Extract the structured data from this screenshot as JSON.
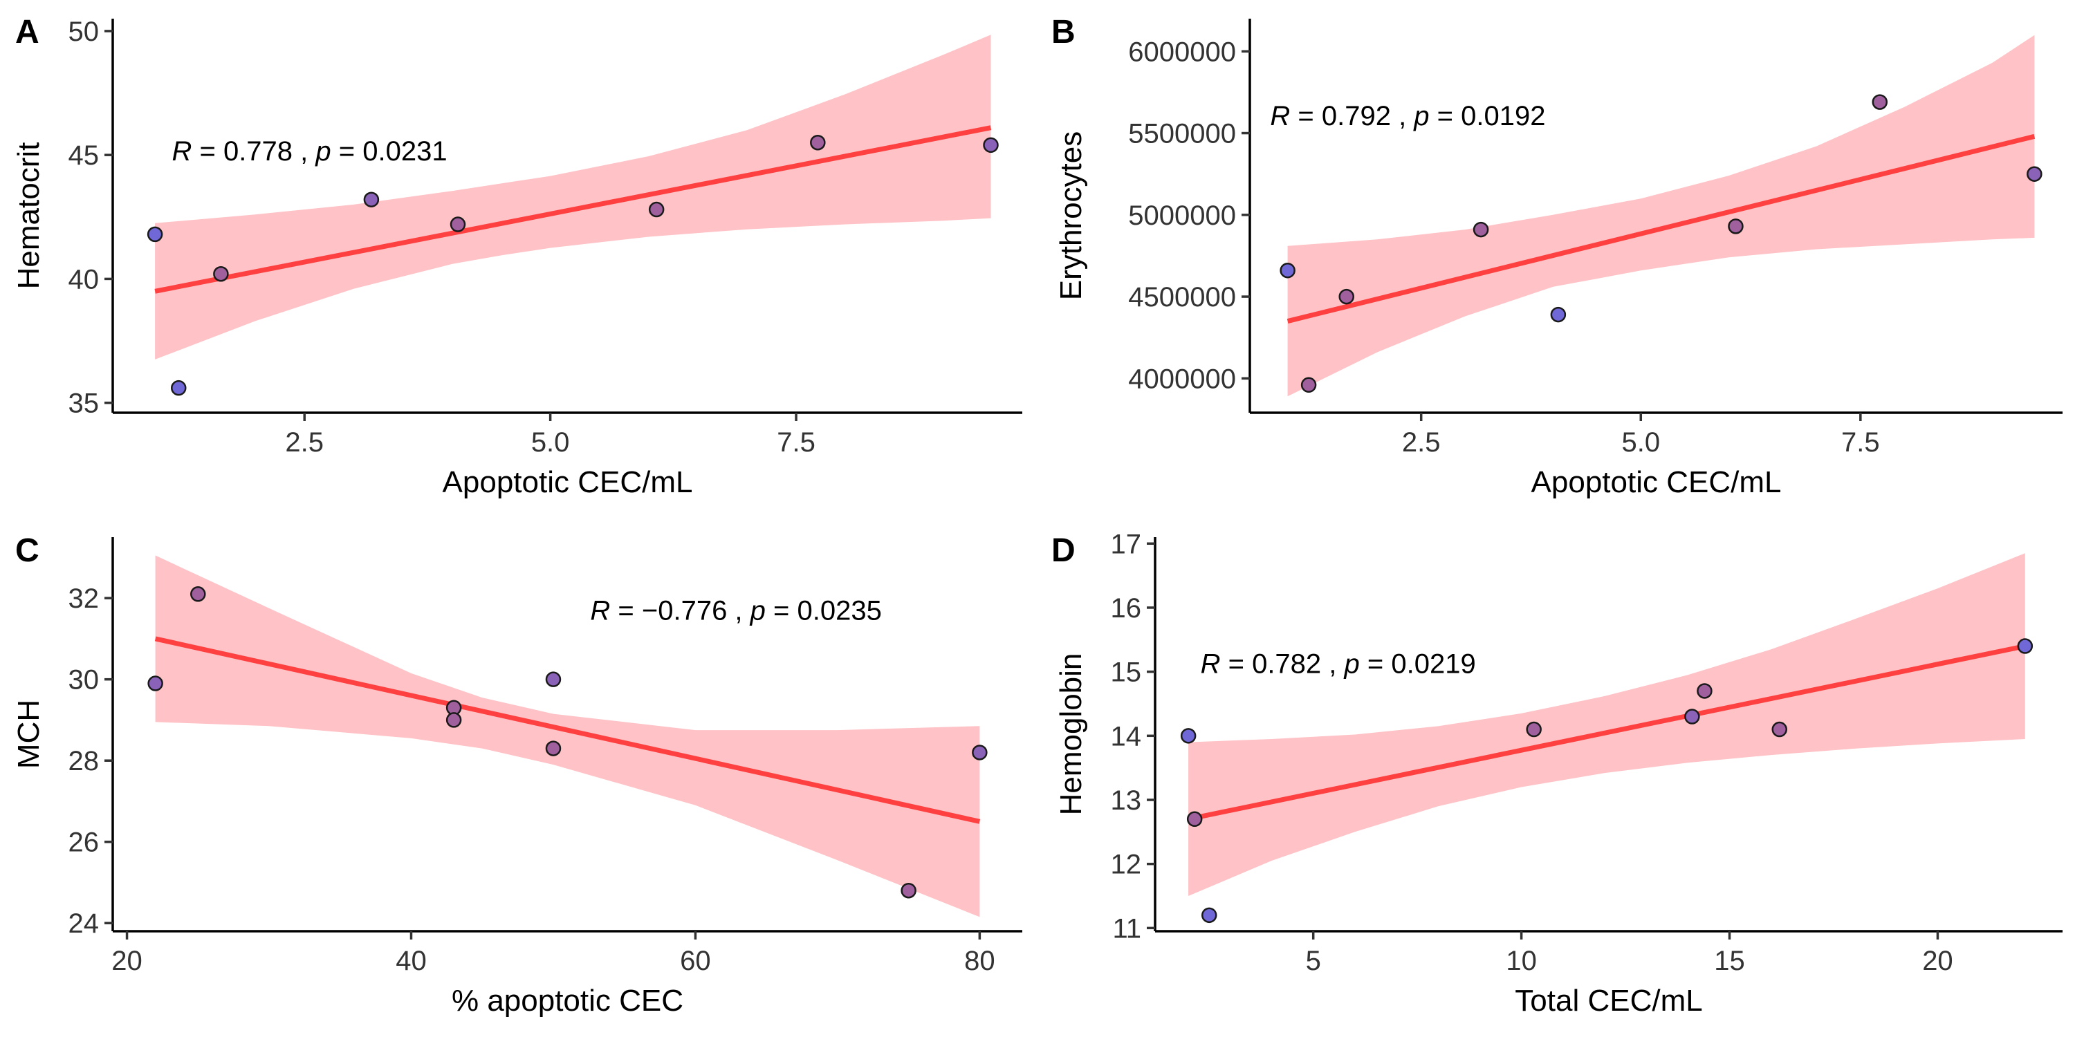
{
  "colors": {
    "fit_line": "#ff4040",
    "ci_band": "#ffc2c6",
    "point_palette": [
      "#6f68d6",
      "#8a62b8",
      "#a0609e"
    ]
  },
  "chart_data": [
    {
      "panel": "A",
      "type": "scatter",
      "xlabel": "Apoptotic CEC/mL",
      "ylabel": "Hematocrit",
      "xlim": [
        0.55,
        9.8
      ],
      "ylim": [
        34.6,
        50.5
      ],
      "xticks": [
        2.5,
        5.0,
        7.5
      ],
      "xtick_labels": [
        "2.5",
        "5.0",
        "7.5"
      ],
      "yticks": [
        35,
        40,
        45,
        50
      ],
      "ytick_labels": [
        "35",
        "40",
        "45",
        "50"
      ],
      "annotation": {
        "r_label": "R = 0.778 ,",
        "p_label": "p = 0.0231"
      },
      "points": [
        {
          "x": 0.98,
          "y": 41.8,
          "c": 0
        },
        {
          "x": 1.22,
          "y": 35.6,
          "c": 0
        },
        {
          "x": 1.65,
          "y": 40.2,
          "c": 2
        },
        {
          "x": 3.18,
          "y": 43.2,
          "c": 1
        },
        {
          "x": 4.06,
          "y": 42.2,
          "c": 2
        },
        {
          "x": 6.08,
          "y": 42.8,
          "c": 2
        },
        {
          "x": 7.72,
          "y": 45.5,
          "c": 2
        },
        {
          "x": 9.48,
          "y": 45.4,
          "c": 1
        }
      ],
      "fit": {
        "x": [
          0.98,
          9.48
        ],
        "y": [
          39.5,
          46.1
        ]
      },
      "ci": {
        "x": [
          0.98,
          2.0,
          3.0,
          4.0,
          4.5,
          5.0,
          6.0,
          7.0,
          8.0,
          9.0,
          9.48
        ],
        "lower": [
          36.75,
          38.3,
          39.6,
          40.6,
          40.95,
          41.25,
          41.7,
          42.0,
          42.2,
          42.35,
          42.45
        ],
        "upper": [
          42.25,
          42.6,
          43.0,
          43.55,
          43.85,
          44.15,
          44.95,
          46.0,
          47.45,
          49.05,
          49.85
        ]
      }
    },
    {
      "panel": "B",
      "type": "scatter",
      "xlabel": "Apoptotic CEC/mL",
      "ylabel": "Erythrocytes",
      "xlim": [
        0.55,
        9.8
      ],
      "ylim": [
        3790000,
        6200000
      ],
      "xticks": [
        2.5,
        5.0,
        7.5
      ],
      "xtick_labels": [
        "2.5",
        "5.0",
        "7.5"
      ],
      "yticks": [
        4000000,
        4500000,
        5000000,
        5500000,
        6000000
      ],
      "ytick_labels": [
        "4000000",
        "4500000",
        "5000000",
        "5500000",
        "6000000"
      ],
      "annotation": {
        "r_label": "R = 0.792 ,",
        "p_label": "p = 0.0192"
      },
      "points": [
        {
          "x": 0.98,
          "y": 4660000,
          "c": 0
        },
        {
          "x": 1.22,
          "y": 3960000,
          "c": 2
        },
        {
          "x": 1.65,
          "y": 4500000,
          "c": 2
        },
        {
          "x": 3.18,
          "y": 4910000,
          "c": 2
        },
        {
          "x": 4.06,
          "y": 4390000,
          "c": 0
        },
        {
          "x": 6.08,
          "y": 4930000,
          "c": 2
        },
        {
          "x": 7.72,
          "y": 5690000,
          "c": 2
        },
        {
          "x": 9.48,
          "y": 5250000,
          "c": 1
        }
      ],
      "fit": {
        "x": [
          0.98,
          9.48
        ],
        "y": [
          4350000,
          5480000
        ]
      },
      "ci": {
        "x": [
          0.98,
          2.0,
          3.0,
          4.0,
          4.5,
          5.0,
          6.0,
          7.0,
          8.0,
          9.0,
          9.48
        ],
        "lower": [
          3890000,
          4160000,
          4380000,
          4560000,
          4610000,
          4660000,
          4740000,
          4790000,
          4820000,
          4850000,
          4860000
        ],
        "upper": [
          4810000,
          4850000,
          4910000,
          5000000,
          5050000,
          5100000,
          5240000,
          5420000,
          5660000,
          5930000,
          6100000
        ]
      }
    },
    {
      "panel": "C",
      "type": "scatter",
      "xlabel": "% apoptotic CEC",
      "ylabel": "MCH",
      "xlim": [
        19.0,
        83.0
      ],
      "ylim": [
        23.8,
        33.5
      ],
      "xticks": [
        20,
        40,
        60,
        80
      ],
      "xtick_labels": [
        "20",
        "40",
        "60",
        "80"
      ],
      "yticks": [
        24,
        26,
        28,
        30,
        32
      ],
      "ytick_labels": [
        "24",
        "26",
        "28",
        "30",
        "32"
      ],
      "annotation": {
        "r_label": "R = −0.776 ,",
        "p_label": "p = 0.0235"
      },
      "points": [
        {
          "x": 22,
          "y": 29.9,
          "c": 1
        },
        {
          "x": 25,
          "y": 32.1,
          "c": 2
        },
        {
          "x": 43,
          "y": 29.3,
          "c": 2
        },
        {
          "x": 43,
          "y": 29.0,
          "c": 2
        },
        {
          "x": 50,
          "y": 30.0,
          "c": 1
        },
        {
          "x": 50,
          "y": 28.3,
          "c": 2
        },
        {
          "x": 75,
          "y": 24.8,
          "c": 2
        },
        {
          "x": 80,
          "y": 28.2,
          "c": 1
        }
      ],
      "fit": {
        "x": [
          22,
          80
        ],
        "y": [
          31.0,
          26.5
        ]
      },
      "ci": {
        "x": [
          22,
          30,
          40,
          45,
          50,
          60,
          70,
          80
        ],
        "lower": [
          28.95,
          28.85,
          28.55,
          28.3,
          27.9,
          26.9,
          25.55,
          24.15
        ],
        "upper": [
          33.05,
          31.75,
          30.15,
          29.55,
          29.15,
          28.75,
          28.75,
          28.85
        ]
      }
    },
    {
      "panel": "D",
      "type": "scatter",
      "xlabel": "Total CEC/mL",
      "ylabel": "Hemoglobin",
      "xlim": [
        1.2,
        23.0
      ],
      "ylim": [
        10.95,
        17.1
      ],
      "xticks": [
        5,
        10,
        15,
        20
      ],
      "xtick_labels": [
        "5",
        "10",
        "15",
        "20"
      ],
      "yticks": [
        11,
        12,
        13,
        14,
        15,
        16,
        17
      ],
      "ytick_labels": [
        "11",
        "12",
        "13",
        "14",
        "15",
        "16",
        "17"
      ],
      "annotation": {
        "r_label": "R = 0.782 ,",
        "p_label": "p = 0.0219"
      },
      "points": [
        {
          "x": 2.0,
          "y": 14.0,
          "c": 0
        },
        {
          "x": 2.15,
          "y": 12.7,
          "c": 2
        },
        {
          "x": 2.5,
          "y": 11.2,
          "c": 0
        },
        {
          "x": 10.3,
          "y": 14.1,
          "c": 2
        },
        {
          "x": 14.1,
          "y": 14.3,
          "c": 1
        },
        {
          "x": 14.4,
          "y": 14.7,
          "c": 2
        },
        {
          "x": 16.2,
          "y": 14.1,
          "c": 2
        },
        {
          "x": 22.1,
          "y": 15.4,
          "c": 0
        }
      ],
      "fit": {
        "x": [
          2.0,
          22.1
        ],
        "y": [
          12.7,
          15.4
        ]
      },
      "ci": {
        "x": [
          2.0,
          4.0,
          6.0,
          8.0,
          10.0,
          12.0,
          14.0,
          16.0,
          18.0,
          20.0,
          22.1
        ],
        "lower": [
          11.5,
          12.05,
          12.5,
          12.9,
          13.2,
          13.42,
          13.58,
          13.7,
          13.8,
          13.88,
          13.95
        ],
        "upper": [
          13.9,
          13.95,
          14.02,
          14.15,
          14.35,
          14.62,
          14.95,
          15.35,
          15.82,
          16.3,
          16.85
        ]
      }
    }
  ]
}
